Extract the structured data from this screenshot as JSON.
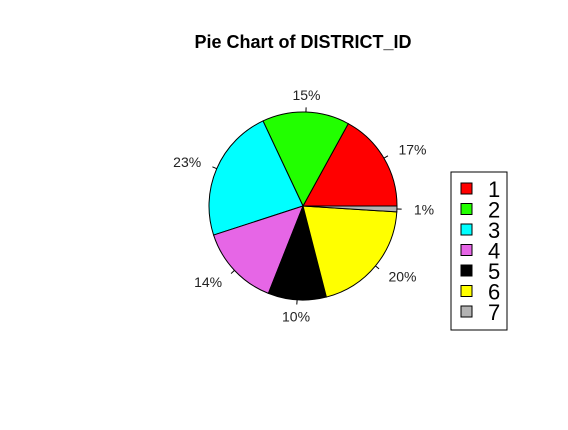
{
  "chart_data": {
    "type": "pie",
    "title": "Pie Chart of DISTRICT_ID",
    "categories": [
      "1",
      "2",
      "3",
      "4",
      "5",
      "6",
      "7"
    ],
    "values": [
      17,
      15,
      23,
      14,
      10,
      20,
      1
    ],
    "labels": [
      "17%",
      "15%",
      "23%",
      "14%",
      "10%",
      "20%",
      "1%"
    ],
    "colors": [
      "#ff0000",
      "#22ff00",
      "#00ffff",
      "#e666e6",
      "#000000",
      "#ffff00",
      "#b3b3b3"
    ],
    "start_angle_deg": 0,
    "direction": "counterclockwise",
    "legend_position": "right"
  }
}
